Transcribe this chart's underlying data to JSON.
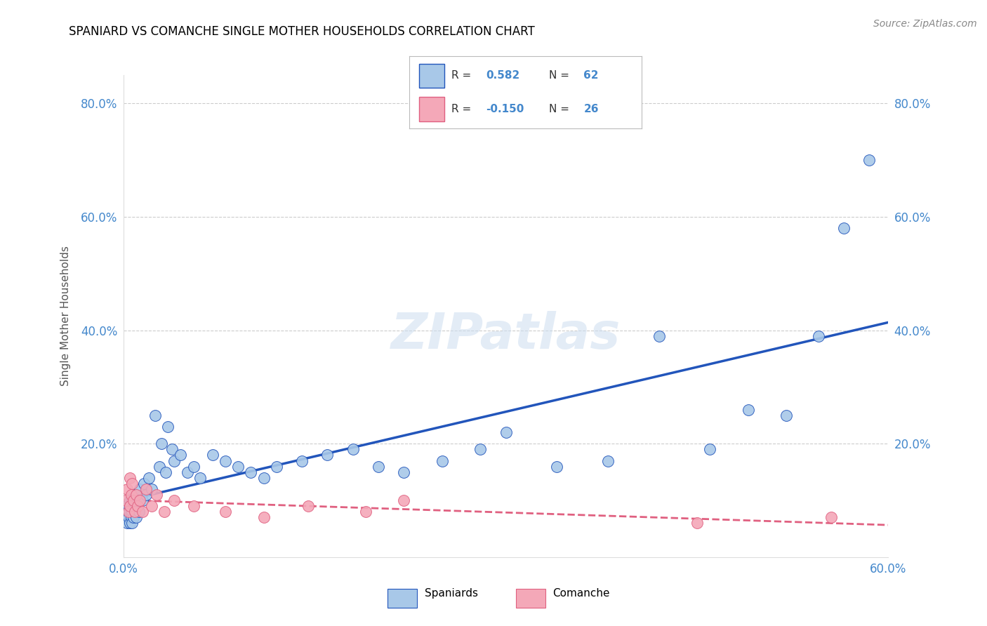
{
  "title": "SPANIARD VS COMANCHE SINGLE MOTHER HOUSEHOLDS CORRELATION CHART",
  "source": "Source: ZipAtlas.com",
  "ylabel_label": "Single Mother Households",
  "xlim": [
    0.0,
    0.6
  ],
  "ylim": [
    0.0,
    0.85
  ],
  "spaniard_R": 0.582,
  "spaniard_N": 62,
  "comanche_R": -0.15,
  "comanche_N": 26,
  "spaniard_color": "#a8c8e8",
  "comanche_color": "#f4a8b8",
  "spaniard_line_color": "#2255bb",
  "comanche_line_color": "#e06080",
  "spaniard_x": [
    0.002,
    0.003,
    0.003,
    0.004,
    0.004,
    0.005,
    0.005,
    0.005,
    0.006,
    0.006,
    0.006,
    0.007,
    0.007,
    0.007,
    0.008,
    0.008,
    0.009,
    0.009,
    0.01,
    0.01,
    0.011,
    0.012,
    0.013,
    0.015,
    0.016,
    0.018,
    0.02,
    0.022,
    0.025,
    0.028,
    0.03,
    0.033,
    0.035,
    0.038,
    0.04,
    0.045,
    0.05,
    0.055,
    0.06,
    0.07,
    0.08,
    0.09,
    0.1,
    0.11,
    0.12,
    0.14,
    0.16,
    0.18,
    0.2,
    0.22,
    0.25,
    0.28,
    0.3,
    0.34,
    0.38,
    0.42,
    0.46,
    0.49,
    0.52,
    0.545,
    0.565,
    0.585
  ],
  "spaniard_y": [
    0.07,
    0.08,
    0.06,
    0.09,
    0.07,
    0.08,
    0.06,
    0.1,
    0.08,
    0.07,
    0.09,
    0.08,
    0.06,
    0.1,
    0.07,
    0.09,
    0.08,
    0.11,
    0.09,
    0.07,
    0.1,
    0.08,
    0.12,
    0.1,
    0.13,
    0.11,
    0.14,
    0.12,
    0.25,
    0.16,
    0.2,
    0.15,
    0.23,
    0.19,
    0.17,
    0.18,
    0.15,
    0.16,
    0.14,
    0.18,
    0.17,
    0.16,
    0.15,
    0.14,
    0.16,
    0.17,
    0.18,
    0.19,
    0.16,
    0.15,
    0.17,
    0.19,
    0.22,
    0.16,
    0.17,
    0.39,
    0.19,
    0.26,
    0.25,
    0.39,
    0.58,
    0.7
  ],
  "comanche_x": [
    0.002,
    0.003,
    0.004,
    0.005,
    0.005,
    0.006,
    0.007,
    0.008,
    0.009,
    0.01,
    0.011,
    0.013,
    0.015,
    0.018,
    0.022,
    0.026,
    0.032,
    0.04,
    0.055,
    0.08,
    0.11,
    0.145,
    0.19,
    0.22,
    0.45,
    0.555
  ],
  "comanche_y": [
    0.1,
    0.12,
    0.08,
    0.14,
    0.09,
    0.11,
    0.13,
    0.1,
    0.08,
    0.11,
    0.09,
    0.1,
    0.08,
    0.12,
    0.09,
    0.11,
    0.08,
    0.1,
    0.09,
    0.08,
    0.07,
    0.09,
    0.08,
    0.1,
    0.06,
    0.07
  ]
}
